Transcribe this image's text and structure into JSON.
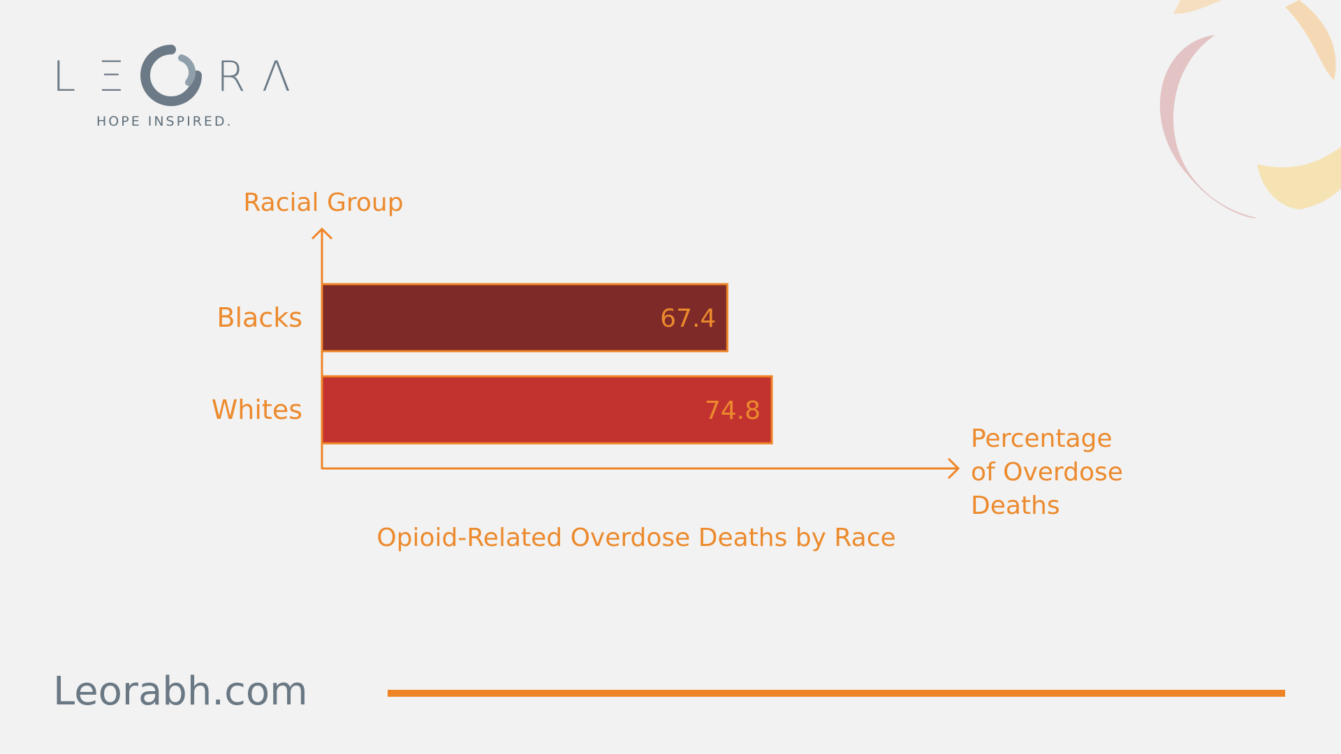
{
  "brand": {
    "logo_text": "LEORA",
    "tagline": "HOPE INSPIRED.",
    "website": "Leorabh.com"
  },
  "colors": {
    "accent_orange": "#ef8426",
    "bar_blacks": "#7d2a28",
    "bar_whites": "#c23330",
    "label_orange": "#ec8a2d",
    "text_gray": "#6a7884"
  },
  "chart_data": {
    "type": "bar",
    "orientation": "horizontal",
    "title": "Opioid-Related Overdose Deaths by Race",
    "xlabel": "Percentage of Overdose Deaths",
    "ylabel": "Racial Group",
    "categories": [
      "Blacks",
      "Whites"
    ],
    "values": [
      67.4,
      74.8
    ],
    "xlim": [
      0,
      100
    ],
    "grid": false,
    "legend": false
  }
}
